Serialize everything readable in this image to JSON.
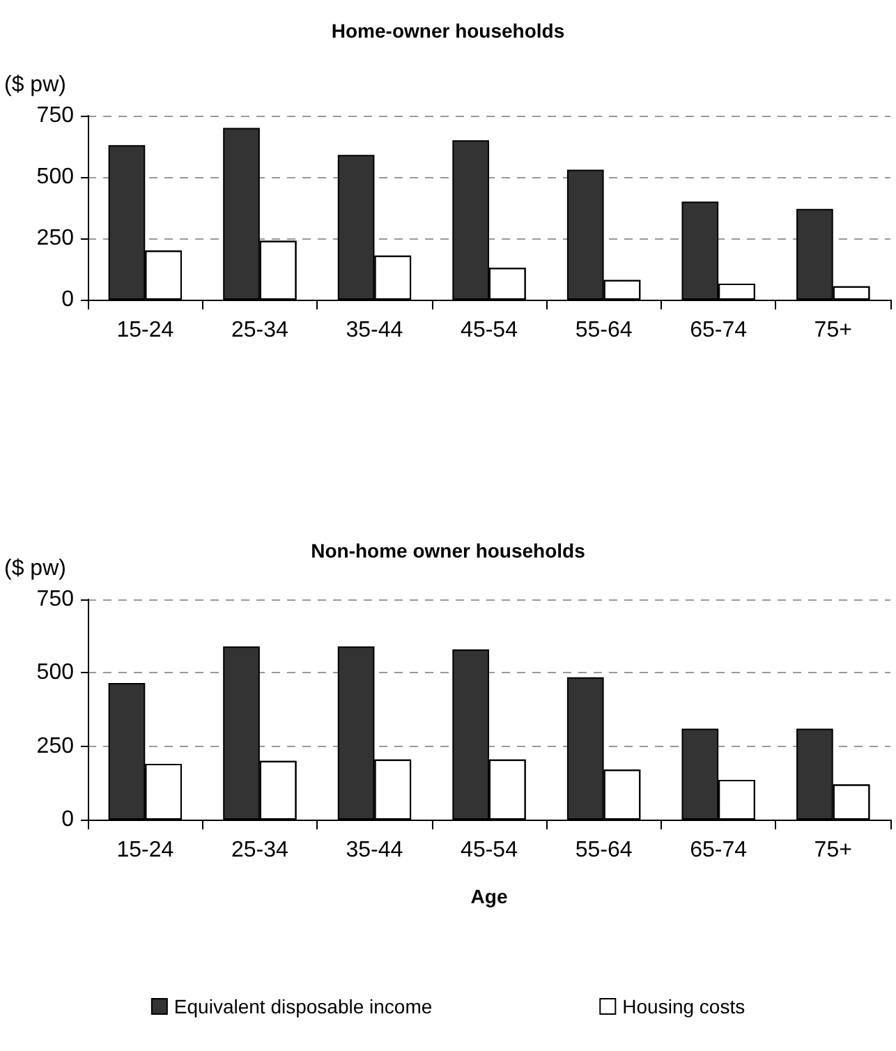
{
  "chart_data": [
    {
      "type": "bar",
      "title": "Home-owner households",
      "ylabel": "($ pw)",
      "categories": [
        "15-24",
        "25-34",
        "35-44",
        "45-54",
        "55-64",
        "65-74",
        "75+"
      ],
      "series": [
        {
          "color": "#333333",
          "values": [
            630,
            700,
            590,
            650,
            530,
            400,
            370
          ]
        },
        {
          "color": "#ffffff",
          "values": [
            200,
            240,
            180,
            130,
            80,
            65,
            55
          ]
        }
      ],
      "ylim": [
        0,
        750
      ],
      "yticks": [
        0,
        250,
        500,
        750
      ],
      "grid": "y",
      "legend": false
    },
    {
      "type": "bar",
      "title": "Non-home owner households",
      "ylabel": "($ pw)",
      "xlabel": "Age",
      "categories": [
        "15-24",
        "25-34",
        "35-44",
        "45-54",
        "55-64",
        "65-74",
        "75+"
      ],
      "series": [
        {
          "name": "Equivalent disposable income",
          "color": "#333333",
          "values": [
            465,
            590,
            590,
            580,
            485,
            310,
            310
          ]
        },
        {
          "name": "Housing costs",
          "color": "#ffffff",
          "values": [
            190,
            200,
            205,
            205,
            170,
            135,
            120
          ]
        }
      ],
      "ylim": [
        0,
        750
      ],
      "yticks": [
        0,
        250,
        500,
        750
      ],
      "grid": "y",
      "legend": "bottom"
    }
  ]
}
